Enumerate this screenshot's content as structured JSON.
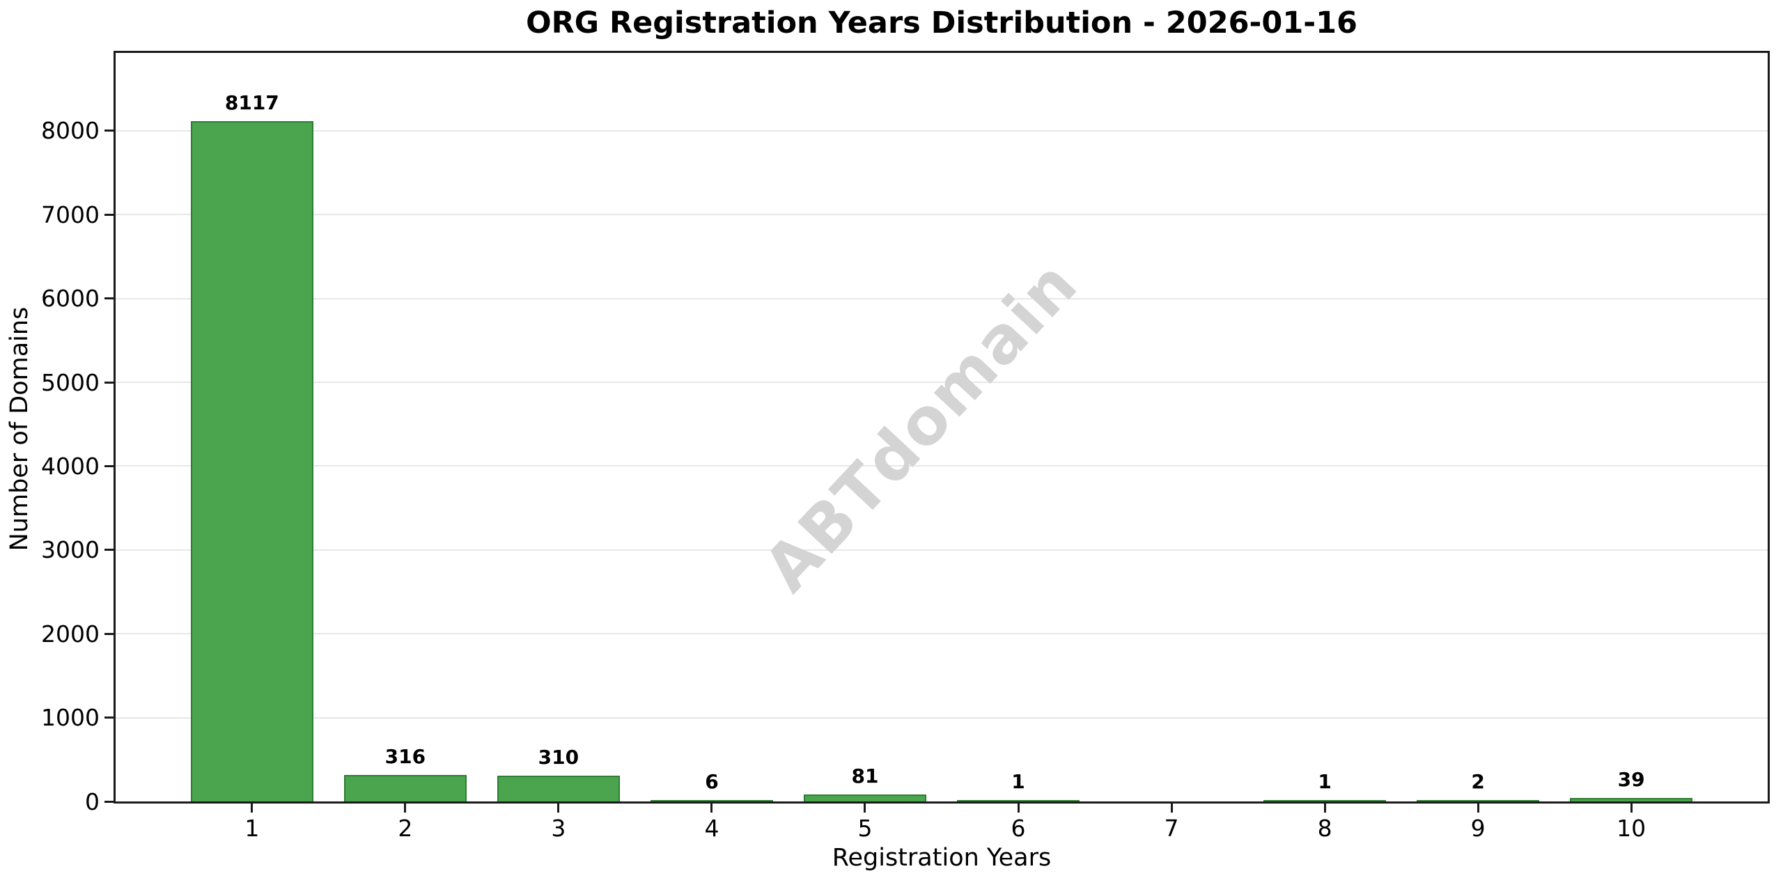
{
  "figure": {
    "watermark": "ABTdomain"
  },
  "chart_data": {
    "type": "bar",
    "title": "ORG Registration Years Distribution - 2026-01-16",
    "xlabel": "Registration Years",
    "ylabel": "Number of Domains",
    "categories": [
      1,
      2,
      3,
      4,
      5,
      6,
      7,
      8,
      9,
      10
    ],
    "values": [
      8117,
      316,
      310,
      6,
      81,
      1,
      0,
      1,
      2,
      39
    ],
    "bar_labels": [
      "8117",
      "316",
      "310",
      "6",
      "81",
      "1",
      "",
      "1",
      "2",
      "39"
    ],
    "x_tick_labels": [
      "1",
      "2",
      "3",
      "4",
      "5",
      "6",
      "7",
      "8",
      "9",
      "10"
    ],
    "yticks": [
      0,
      1000,
      2000,
      3000,
      4000,
      5000,
      6000,
      7000,
      8000
    ],
    "ytick_labels": [
      "0",
      "1000",
      "2000",
      "3000",
      "4000",
      "5000",
      "6000",
      "7000",
      "8000"
    ],
    "xlim": [
      0.11,
      10.89
    ],
    "ylim": [
      0,
      8929
    ],
    "bar_width": 0.8,
    "grid": "horizontal-only",
    "legend": "none",
    "watermark_text": "ABTdomain",
    "colors": {
      "bar_fill": "#4aa54e",
      "bar_edge": "#2e7d32",
      "grid": "#e7e7e7",
      "spine": "#1a1a1a",
      "text": "#000000",
      "watermark": "#d4d4d4",
      "background": "#ffffff"
    }
  }
}
